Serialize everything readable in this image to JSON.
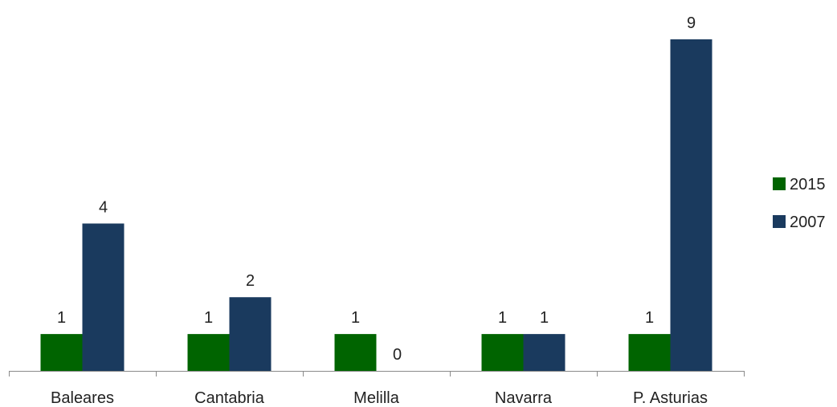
{
  "chart_data": {
    "type": "bar",
    "categories": [
      "Baleares",
      "Cantabria",
      "Melilla",
      "Navarra",
      "P. Asturias"
    ],
    "series": [
      {
        "name": "2015",
        "color": "#006400",
        "values": [
          1,
          1,
          1,
          1,
          1
        ]
      },
      {
        "name": "2007",
        "color": "#1a3a5e",
        "values": [
          4,
          2,
          0,
          1,
          9
        ]
      }
    ],
    "title": "",
    "xlabel": "",
    "ylabel": "",
    "ylim": [
      0,
      9
    ],
    "grid": false,
    "data_labels": true,
    "legend": {
      "position": "right"
    }
  }
}
